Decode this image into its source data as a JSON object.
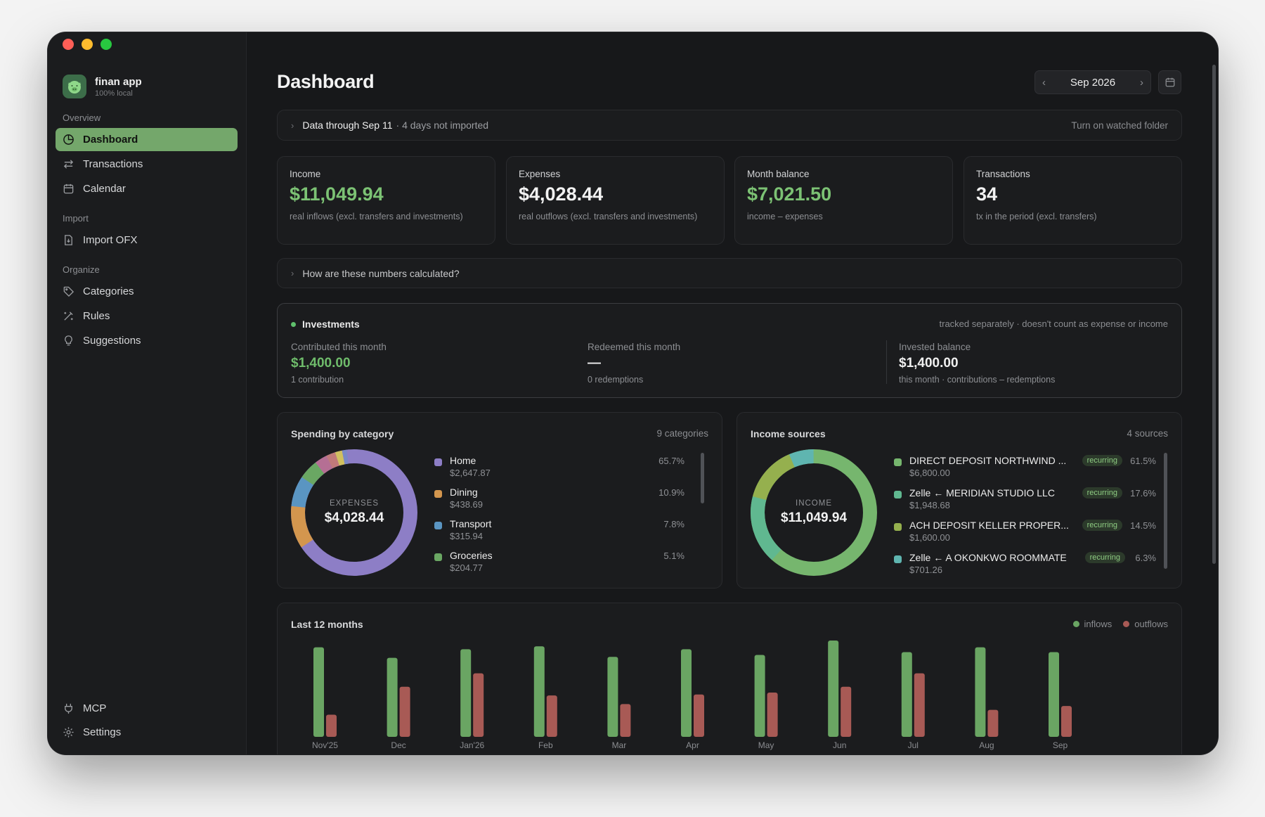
{
  "sidebar": {
    "app_name": "finan app",
    "app_sub": "100% local",
    "sections": {
      "overview": "Overview",
      "import": "Import",
      "organize": "Organize"
    },
    "items": {
      "dashboard": "Dashboard",
      "transactions": "Transactions",
      "calendar": "Calendar",
      "import_ofx": "Import OFX",
      "categories": "Categories",
      "rules": "Rules",
      "suggestions": "Suggestions",
      "mcp": "MCP",
      "settings": "Settings"
    },
    "active": "dashboard"
  },
  "header": {
    "title": "Dashboard",
    "month": "Sep 2026"
  },
  "banner": {
    "strong": "Data through Sep 11",
    "muted": "· 4 days not imported",
    "action": "Turn on watched folder"
  },
  "stats": {
    "income": {
      "label": "Income",
      "value": "$11,049.94",
      "desc": "real inflows (excl. transfers and investments)"
    },
    "expenses": {
      "label": "Expenses",
      "value": "$4,028.44",
      "desc": "real outflows (excl. transfers and investments)"
    },
    "balance": {
      "label": "Month balance",
      "value": "$7,021.50",
      "desc": "income – expenses"
    },
    "transactions": {
      "label": "Transactions",
      "value": "34",
      "desc": "tx in the period (excl. transfers)"
    }
  },
  "how_calc": "How are these numbers calculated?",
  "investments": {
    "title": "Investments",
    "note": "tracked separately · doesn't count as expense or income",
    "contributed": {
      "label": "Contributed this month",
      "value": "$1,400.00",
      "sub": "1 contribution"
    },
    "redeemed": {
      "label": "Redeemed this month",
      "value": "—",
      "sub": "0 redemptions"
    },
    "balance": {
      "label": "Invested balance",
      "value": "$1,400.00",
      "sub": "this month · contributions – redemptions"
    }
  },
  "spending": {
    "title": "Spending by category",
    "count": "9 categories",
    "center_label": "EXPENSES",
    "center_value": "$4,028.44",
    "items": [
      {
        "name": "Home",
        "amount": "$2,647.87",
        "pct": "65.7%",
        "color": "#8d7ec6"
      },
      {
        "name": "Dining",
        "amount": "$438.69",
        "pct": "10.9%",
        "color": "#d3964e"
      },
      {
        "name": "Transport",
        "amount": "$315.94",
        "pct": "7.8%",
        "color": "#5a95c2"
      },
      {
        "name": "Groceries",
        "amount": "$204.77",
        "pct": "5.1%",
        "color": "#6aa763"
      }
    ]
  },
  "income_sources": {
    "title": "Income sources",
    "count": "4 sources",
    "center_label": "INCOME",
    "center_value": "$11,049.94",
    "tag": "recurring",
    "items": [
      {
        "name": "DIRECT DEPOSIT NORTHWIND ...",
        "amount": "$6,800.00",
        "pct": "61.5%",
        "color": "#76b66e"
      },
      {
        "name": "Zelle ← MERIDIAN STUDIO LLC",
        "amount": "$1,948.68",
        "pct": "17.6%",
        "color": "#60b890"
      },
      {
        "name": "ACH DEPOSIT KELLER PROPER...",
        "amount": "$1,600.00",
        "pct": "14.5%",
        "color": "#95b04e"
      },
      {
        "name": "Zelle ← A OKONKWO ROOMMATE",
        "amount": "$701.26",
        "pct": "6.3%",
        "color": "#5fb5b0"
      }
    ]
  },
  "last12": {
    "title": "Last 12 months",
    "legend_in": "inflows",
    "legend_out": "outflows",
    "colors": {
      "in": "#6aa563",
      "out": "#a85a55"
    }
  },
  "chart_data": {
    "type": "bar",
    "title": "Last 12 months",
    "categories": [
      "Nov'25",
      "Dec",
      "Jan'26",
      "Feb",
      "Mar",
      "Apr",
      "May",
      "Jun",
      "Jul",
      "Aug",
      "Sep"
    ],
    "series": [
      {
        "name": "inflows",
        "values": [
          0.93,
          0.82,
          0.91,
          0.94,
          0.83,
          0.91,
          0.85,
          1.0,
          0.88,
          0.93,
          0.88
        ]
      },
      {
        "name": "outflows",
        "values": [
          0.23,
          0.52,
          0.66,
          0.43,
          0.34,
          0.44,
          0.46,
          0.52,
          0.66,
          0.28,
          0.32
        ]
      }
    ],
    "ylabel": "",
    "xlabel": ""
  }
}
